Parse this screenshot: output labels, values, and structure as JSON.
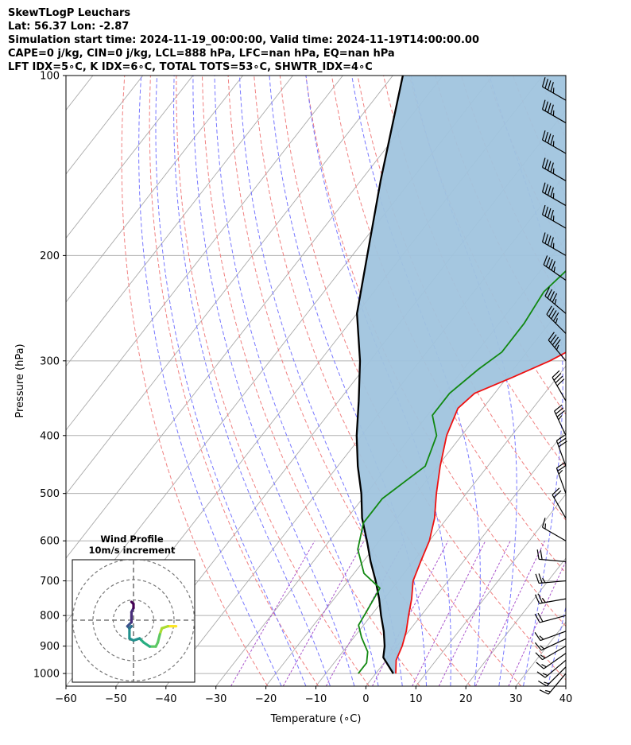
{
  "header": {
    "line1": "SkewTLogP Leuchars",
    "line2": "Lat: 56.37   Lon: -2.87",
    "line3": "Simulation start time: 2024-11-19_00:00:00, Valid time: 2024-11-19T14:00:00.00",
    "line4": "CAPE=0 j/kg, CIN=0 j/kg, LCL=888 hPa, LFC=nan hPa, EQ=nan hPa",
    "line5": "LFT IDX=5∘C, K IDX=6∘C, TOTAL TOTS=53∘C, SHWTR_IDX=4∘C"
  },
  "chart_data": {
    "type": "line",
    "subtype": "skew-t log-p",
    "xlabel": "Temperature (∘C)",
    "ylabel": "Pressure (hPa)",
    "xlim": [
      -60,
      40
    ],
    "ylim": [
      1050,
      100
    ],
    "y_scale": "log",
    "x_ticks": [
      "−60",
      "−50",
      "−40",
      "−30",
      "−20",
      "−10",
      "0",
      "10",
      "20",
      "30",
      "40"
    ],
    "y_ticks": [
      "100",
      "200",
      "300",
      "400",
      "500",
      "600",
      "700",
      "800",
      "900",
      "1000"
    ],
    "grid": true,
    "colors": {
      "temperature": "#ee1111",
      "dewpoint": "#118811",
      "parcel": "#000000",
      "fill": "#a0c4de",
      "dry_adiabat": "#f08080",
      "moist_adiabat": "#7777ff",
      "mixing_ratio": "#aa55cc",
      "isotherm": "#aaaaaa"
    },
    "series": [
      {
        "id": "temperature",
        "points": [
          [
            4.0,
            1000
          ],
          [
            2.0,
            950
          ],
          [
            1.0,
            900
          ],
          [
            -0.5,
            850
          ],
          [
            -2.5,
            800
          ],
          [
            -4.5,
            750
          ],
          [
            -7.0,
            700
          ],
          [
            -8.5,
            650
          ],
          [
            -10.0,
            600
          ],
          [
            -12.5,
            550
          ],
          [
            -16.0,
            500
          ],
          [
            -19.5,
            450
          ],
          [
            -23.0,
            400
          ],
          [
            -25.0,
            360
          ],
          [
            -24.0,
            340
          ],
          [
            -19.0,
            320
          ],
          [
            -14.0,
            300
          ],
          [
            -10.0,
            280
          ],
          [
            -8.0,
            270
          ],
          [
            -6.0,
            250
          ],
          [
            -5.0,
            220
          ],
          [
            -3.0,
            190
          ],
          [
            1.0,
            170
          ],
          [
            6.0,
            150
          ],
          [
            10.0,
            130
          ],
          [
            14.0,
            110
          ],
          [
            16.0,
            100
          ]
        ]
      },
      {
        "id": "dewpoint",
        "points": [
          [
            -3.5,
            1000
          ],
          [
            -3.5,
            960
          ],
          [
            -5.0,
            920
          ],
          [
            -8.5,
            870
          ],
          [
            -11.0,
            830
          ],
          [
            -11.5,
            790
          ],
          [
            -12.5,
            720
          ],
          [
            -18.0,
            680
          ],
          [
            -23.0,
            620
          ],
          [
            -26.0,
            560
          ],
          [
            -26.0,
            510
          ],
          [
            -22.5,
            450
          ],
          [
            -25.0,
            400
          ],
          [
            -29.0,
            370
          ],
          [
            -29.0,
            340
          ],
          [
            -27.0,
            310
          ],
          [
            -25.0,
            290
          ],
          [
            -25.0,
            260
          ],
          [
            -26.0,
            230
          ],
          [
            -24.0,
            200
          ],
          [
            -19.0,
            170
          ],
          [
            -10.0,
            140
          ],
          [
            -4.0,
            120
          ],
          [
            1.0,
            100
          ]
        ]
      },
      {
        "id": "parcel",
        "points": [
          [
            3.5,
            1000
          ],
          [
            -1.0,
            940
          ],
          [
            -2.5,
            900
          ],
          [
            -5.0,
            850
          ],
          [
            -8.0,
            800
          ],
          [
            -11.0,
            750
          ],
          [
            -14.5,
            700
          ],
          [
            -18.5,
            650
          ],
          [
            -22.5,
            600
          ],
          [
            -27.0,
            550
          ],
          [
            -31.0,
            500
          ],
          [
            -36.0,
            450
          ],
          [
            -41.0,
            400
          ],
          [
            -46.0,
            350
          ],
          [
            -52.0,
            300
          ],
          [
            -60.0,
            250
          ],
          [
            -67.0,
            200
          ],
          [
            -76.0,
            150
          ],
          [
            -88.0,
            100
          ]
        ]
      }
    ],
    "wind_barbs": {
      "pressures": [
        1000,
        975,
        950,
        925,
        900,
        875,
        850,
        800,
        750,
        700,
        650,
        600,
        550,
        500,
        450,
        400,
        350,
        300,
        270,
        250,
        220,
        200,
        180,
        165,
        150,
        135,
        120,
        110
      ],
      "direction_deg": [
        220,
        225,
        230,
        235,
        240,
        245,
        250,
        255,
        260,
        265,
        275,
        300,
        330,
        340,
        340,
        335,
        330,
        320,
        315,
        310,
        305,
        300,
        300,
        300,
        300,
        300,
        300,
        300
      ],
      "speed_kt": [
        15,
        15,
        15,
        15,
        15,
        15,
        15,
        20,
        25,
        25,
        20,
        15,
        20,
        25,
        30,
        35,
        40,
        45,
        45,
        45,
        45,
        45,
        45,
        45,
        45,
        45,
        45,
        45
      ]
    },
    "inset": {
      "title_line1": "Wind Profile",
      "title_line2": "10m/s increment",
      "rings_ms": [
        10,
        20,
        30
      ],
      "hodograph_uv": [
        [
          21,
          -3
        ],
        [
          17,
          -3
        ],
        [
          14,
          -4
        ],
        [
          13,
          -7
        ],
        [
          12,
          -11
        ],
        [
          11,
          -13
        ],
        [
          8,
          -13
        ],
        [
          5,
          -11
        ],
        [
          3,
          -9
        ],
        [
          0,
          -10
        ],
        [
          -2,
          -9
        ],
        [
          -2,
          -4
        ],
        [
          -1,
          -3
        ],
        [
          -2,
          -4
        ],
        [
          -3,
          -3
        ],
        [
          -2,
          -2
        ],
        [
          -1,
          -1
        ],
        [
          -1,
          2
        ],
        [
          -1,
          4
        ],
        [
          0,
          6
        ],
        [
          0,
          8
        ],
        [
          -1,
          9
        ]
      ]
    }
  }
}
